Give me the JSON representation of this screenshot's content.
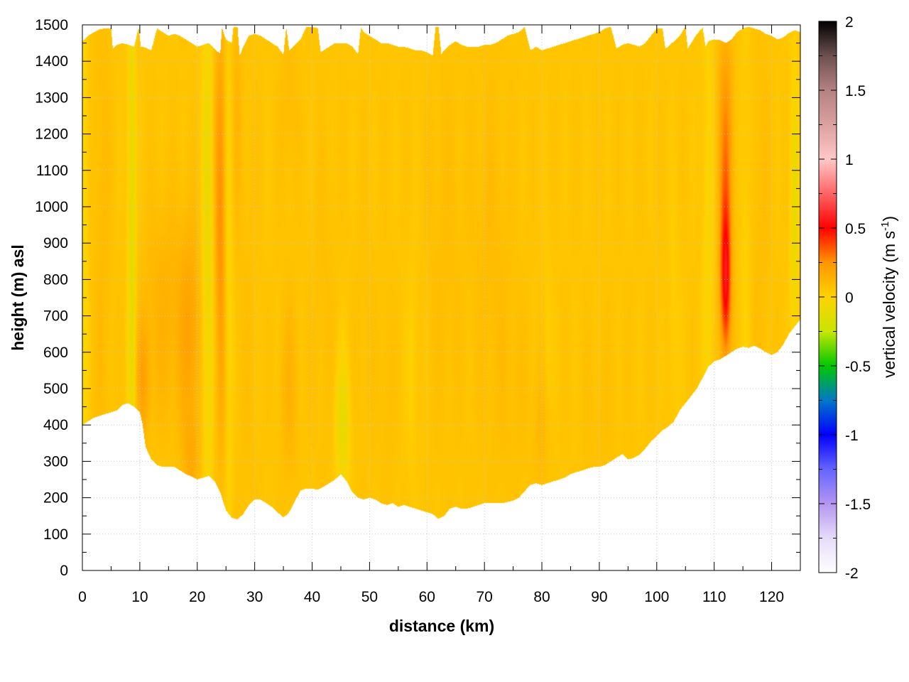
{
  "chart_data": {
    "type": "heatmap",
    "xlabel": "distance (km)",
    "ylabel": "height (m) asl",
    "xlim": [
      0,
      125
    ],
    "ylim": [
      0,
      1500
    ],
    "x_ticks": [
      "0",
      "10",
      "20",
      "30",
      "40",
      "50",
      "60",
      "70",
      "80",
      "90",
      "100",
      "110",
      "120"
    ],
    "y_ticks": [
      "0",
      "100",
      "200",
      "300",
      "400",
      "500",
      "600",
      "700",
      "800",
      "900",
      "1000",
      "1100",
      "1200",
      "1300",
      "1400",
      "1500"
    ],
    "grid": true,
    "colorbar": {
      "label_main": "vertical velocity (m s",
      "label_sup": "-1",
      "label_end": ")",
      "range": [
        -2,
        2
      ],
      "ticks": [
        "2",
        "1.5",
        "1",
        "0.5",
        "0",
        "-0.5",
        "-1",
        "-1.5",
        "-2"
      ],
      "colors": [
        [
          -2.0,
          "#ffffff"
        ],
        [
          -1.75,
          "#e6dcfa"
        ],
        [
          -1.5,
          "#b496f0"
        ],
        [
          -1.25,
          "#6464ff"
        ],
        [
          -1.0,
          "#0000ff"
        ],
        [
          -0.75,
          "#0078c8"
        ],
        [
          -0.5,
          "#00c800"
        ],
        [
          -0.25,
          "#c8e600"
        ],
        [
          0.0,
          "#ffd200"
        ],
        [
          0.25,
          "#ff9600"
        ],
        [
          0.5,
          "#ff0000"
        ],
        [
          0.75,
          "#ff6464"
        ],
        [
          1.0,
          "#ffc8c8"
        ],
        [
          1.25,
          "#dca0a0"
        ],
        [
          1.5,
          "#b48282"
        ],
        [
          1.75,
          "#6e5050"
        ],
        [
          2.0,
          "#000000"
        ]
      ]
    },
    "lower_boundary": [
      [
        0,
        400
      ],
      [
        2,
        420
      ],
      [
        4,
        430
      ],
      [
        6,
        440
      ],
      [
        7,
        455
      ],
      [
        8,
        460
      ],
      [
        9,
        450
      ],
      [
        10,
        435
      ],
      [
        10.5,
        400
      ],
      [
        11,
        340
      ],
      [
        12,
        305
      ],
      [
        13,
        290
      ],
      [
        14,
        285
      ],
      [
        15,
        285
      ],
      [
        16,
        285
      ],
      [
        17,
        275
      ],
      [
        18,
        265
      ],
      [
        19,
        258
      ],
      [
        20,
        250
      ],
      [
        21,
        255
      ],
      [
        22,
        260
      ],
      [
        23,
        245
      ],
      [
        24,
        215
      ],
      [
        25,
        165
      ],
      [
        26,
        145
      ],
      [
        27,
        140
      ],
      [
        28,
        155
      ],
      [
        29,
        180
      ],
      [
        30,
        195
      ],
      [
        31,
        195
      ],
      [
        32,
        185
      ],
      [
        33,
        175
      ],
      [
        34,
        160
      ],
      [
        35,
        145
      ],
      [
        36,
        160
      ],
      [
        37,
        190
      ],
      [
        38,
        220
      ],
      [
        39,
        225
      ],
      [
        40,
        225
      ],
      [
        41,
        222
      ],
      [
        42,
        230
      ],
      [
        43,
        240
      ],
      [
        44,
        250
      ],
      [
        45,
        265
      ],
      [
        46,
        245
      ],
      [
        47,
        215
      ],
      [
        48,
        200
      ],
      [
        49,
        195
      ],
      [
        50,
        200
      ],
      [
        51,
        195
      ],
      [
        52,
        185
      ],
      [
        53,
        180
      ],
      [
        54,
        185
      ],
      [
        55,
        175
      ],
      [
        56,
        180
      ],
      [
        57,
        175
      ],
      [
        58,
        170
      ],
      [
        59,
        165
      ],
      [
        60,
        160
      ],
      [
        61,
        155
      ],
      [
        62,
        142
      ],
      [
        63,
        150
      ],
      [
        64,
        170
      ],
      [
        65,
        175
      ],
      [
        66,
        170
      ],
      [
        67,
        170
      ],
      [
        68,
        175
      ],
      [
        69,
        180
      ],
      [
        70,
        185
      ],
      [
        71,
        185
      ],
      [
        72,
        185
      ],
      [
        73,
        185
      ],
      [
        74,
        188
      ],
      [
        75,
        192
      ],
      [
        76,
        200
      ],
      [
        77,
        218
      ],
      [
        78,
        235
      ],
      [
        79,
        240
      ],
      [
        80,
        235
      ],
      [
        81,
        240
      ],
      [
        82,
        245
      ],
      [
        83,
        250
      ],
      [
        84,
        255
      ],
      [
        85,
        265
      ],
      [
        86,
        270
      ],
      [
        87,
        275
      ],
      [
        88,
        280
      ],
      [
        89,
        285
      ],
      [
        90,
        285
      ],
      [
        91,
        290
      ],
      [
        92,
        300
      ],
      [
        93,
        310
      ],
      [
        94,
        320
      ],
      [
        95,
        305
      ],
      [
        96,
        310
      ],
      [
        97,
        318
      ],
      [
        98,
        335
      ],
      [
        99,
        355
      ],
      [
        100,
        370
      ],
      [
        101,
        385
      ],
      [
        102,
        395
      ],
      [
        103,
        410
      ],
      [
        104,
        440
      ],
      [
        105,
        460
      ],
      [
        106,
        480
      ],
      [
        107,
        500
      ],
      [
        108,
        530
      ],
      [
        109,
        560
      ],
      [
        110,
        575
      ],
      [
        111,
        580
      ],
      [
        112,
        590
      ],
      [
        113,
        600
      ],
      [
        114,
        610
      ],
      [
        115,
        615
      ],
      [
        116,
        612
      ],
      [
        117,
        618
      ],
      [
        118,
        610
      ],
      [
        119,
        600
      ],
      [
        120,
        592
      ],
      [
        121,
        600
      ],
      [
        122,
        620
      ],
      [
        123,
        650
      ],
      [
        124,
        670
      ],
      [
        125,
        690
      ]
    ],
    "upper_boundary": [
      [
        0,
        1455
      ],
      [
        1,
        1470
      ],
      [
        2,
        1480
      ],
      [
        3,
        1488
      ],
      [
        4,
        1490
      ],
      [
        5,
        1490
      ],
      [
        5.3,
        1435
      ],
      [
        6,
        1445
      ],
      [
        7,
        1450
      ],
      [
        8,
        1445
      ],
      [
        9,
        1440
      ],
      [
        9.8,
        1492
      ],
      [
        10.2,
        1440
      ],
      [
        11,
        1438
      ],
      [
        12,
        1430
      ],
      [
        13,
        1490
      ],
      [
        14,
        1480
      ],
      [
        15,
        1470
      ],
      [
        16,
        1475
      ],
      [
        17,
        1470
      ],
      [
        18,
        1460
      ],
      [
        19,
        1450
      ],
      [
        20,
        1440
      ],
      [
        21,
        1445
      ],
      [
        22,
        1450
      ],
      [
        23,
        1435
      ],
      [
        24,
        1420
      ],
      [
        24.3,
        1492
      ],
      [
        25,
        1460
      ],
      [
        26,
        1450
      ],
      [
        26.3,
        1495
      ],
      [
        27,
        1495
      ],
      [
        27.4,
        1415
      ],
      [
        28,
        1440
      ],
      [
        29,
        1470
      ],
      [
        30,
        1475
      ],
      [
        31,
        1470
      ],
      [
        32,
        1460
      ],
      [
        33,
        1450
      ],
      [
        34,
        1440
      ],
      [
        35,
        1418
      ],
      [
        35.5,
        1495
      ],
      [
        36,
        1430
      ],
      [
        37,
        1445
      ],
      [
        38,
        1460
      ],
      [
        39,
        1495
      ],
      [
        40,
        1495
      ],
      [
        41,
        1490
      ],
      [
        41.5,
        1425
      ],
      [
        42,
        1430
      ],
      [
        43,
        1440
      ],
      [
        44,
        1450
      ],
      [
        45,
        1450
      ],
      [
        46,
        1450
      ],
      [
        47,
        1440
      ],
      [
        48,
        1420
      ],
      [
        48.5,
        1492
      ],
      [
        49,
        1480
      ],
      [
        50,
        1470
      ],
      [
        51,
        1460
      ],
      [
        52,
        1450
      ],
      [
        53,
        1450
      ],
      [
        54,
        1445
      ],
      [
        55,
        1440
      ],
      [
        56,
        1440
      ],
      [
        57,
        1435
      ],
      [
        58,
        1430
      ],
      [
        59,
        1430
      ],
      [
        60,
        1425
      ],
      [
        61,
        1415
      ],
      [
        61.5,
        1495
      ],
      [
        62,
        1495
      ],
      [
        62.5,
        1420
      ],
      [
        63,
        1430
      ],
      [
        64,
        1445
      ],
      [
        65,
        1455
      ],
      [
        66,
        1445
      ],
      [
        67,
        1440
      ],
      [
        68,
        1440
      ],
      [
        69,
        1440
      ],
      [
        70,
        1445
      ],
      [
        71,
        1445
      ],
      [
        72,
        1450
      ],
      [
        73,
        1460
      ],
      [
        74,
        1470
      ],
      [
        75,
        1475
      ],
      [
        76,
        1480
      ],
      [
        77,
        1495
      ],
      [
        78,
        1430
      ],
      [
        79,
        1440
      ],
      [
        80,
        1430
      ],
      [
        81,
        1435
      ],
      [
        82,
        1440
      ],
      [
        83,
        1445
      ],
      [
        84,
        1450
      ],
      [
        85,
        1455
      ],
      [
        86,
        1460
      ],
      [
        87,
        1465
      ],
      [
        88,
        1470
      ],
      [
        89,
        1475
      ],
      [
        90,
        1480
      ],
      [
        91,
        1490
      ],
      [
        92,
        1495
      ],
      [
        93,
        1435
      ],
      [
        94,
        1445
      ],
      [
        95,
        1450
      ],
      [
        96,
        1445
      ],
      [
        97,
        1440
      ],
      [
        98,
        1450
      ],
      [
        99,
        1470
      ],
      [
        100,
        1490
      ],
      [
        101,
        1490
      ],
      [
        101.5,
        1435
      ],
      [
        102,
        1440
      ],
      [
        103,
        1455
      ],
      [
        104,
        1470
      ],
      [
        105,
        1495
      ],
      [
        105.4,
        1435
      ],
      [
        106,
        1450
      ],
      [
        107,
        1475
      ],
      [
        108,
        1492
      ],
      [
        108.5,
        1440
      ],
      [
        109,
        1455
      ],
      [
        110,
        1460
      ],
      [
        111,
        1458
      ],
      [
        112,
        1450
      ],
      [
        113,
        1460
      ],
      [
        114,
        1480
      ],
      [
        115,
        1490
      ],
      [
        116,
        1495
      ],
      [
        117,
        1490
      ],
      [
        118,
        1485
      ],
      [
        119,
        1475
      ],
      [
        120,
        1470
      ],
      [
        121,
        1460
      ],
      [
        122,
        1465
      ],
      [
        123,
        1478
      ],
      [
        124,
        1485
      ],
      [
        125,
        1480
      ]
    ],
    "features": [
      {
        "x": 0,
        "y": 900,
        "wx": 1.0,
        "wy": 800,
        "v": -0.1
      },
      {
        "x": 3.5,
        "y": 900,
        "wx": 1.6,
        "wy": 900,
        "v": 0.04
      },
      {
        "x": 8.6,
        "y": 900,
        "wx": 0.7,
        "wy": 800,
        "v": -0.18
      },
      {
        "x": 10.5,
        "y": 520,
        "wx": 1.2,
        "wy": 160,
        "v": 0.12
      },
      {
        "x": 14.5,
        "y": 700,
        "wx": 4.0,
        "wy": 300,
        "v": 0.08
      },
      {
        "x": 18.8,
        "y": 650,
        "wx": 1.8,
        "wy": 300,
        "v": 0.12
      },
      {
        "x": 19.0,
        "y": 300,
        "wx": 1.5,
        "wy": 120,
        "v": 0.08
      },
      {
        "x": 21.8,
        "y": 900,
        "wx": 1.0,
        "wy": 800,
        "v": -0.14
      },
      {
        "x": 24.0,
        "y": 900,
        "wx": 0.9,
        "wy": 300,
        "v": 0.16
      },
      {
        "x": 24.0,
        "y": 1250,
        "wx": 1.0,
        "wy": 300,
        "v": 0.12
      },
      {
        "x": 24.2,
        "y": 500,
        "wx": 1.0,
        "wy": 300,
        "v": 0.08
      },
      {
        "x": 25.5,
        "y": 800,
        "wx": 0.8,
        "wy": 900,
        "v": -0.08
      },
      {
        "x": 26.8,
        "y": 1300,
        "wx": 0.9,
        "wy": 350,
        "v": 0.05
      },
      {
        "x": 28.5,
        "y": 700,
        "wx": 2.0,
        "wy": 800,
        "v": 0.02
      },
      {
        "x": 36.0,
        "y": 500,
        "wx": 1.6,
        "wy": 250,
        "v": 0.07
      },
      {
        "x": 36.0,
        "y": 1300,
        "wx": 1.5,
        "wy": 250,
        "v": 0.04
      },
      {
        "x": 42.0,
        "y": 700,
        "wx": 2.0,
        "wy": 500,
        "v": 0.025
      },
      {
        "x": 45.3,
        "y": 400,
        "wx": 1.3,
        "wy": 200,
        "v": -0.15
      },
      {
        "x": 49.0,
        "y": 600,
        "wx": 1.8,
        "wy": 350,
        "v": 0.02
      },
      {
        "x": 53.0,
        "y": 500,
        "wx": 1.2,
        "wy": 300,
        "v": 0.03
      },
      {
        "x": 57.5,
        "y": 550,
        "wx": 1.0,
        "wy": 300,
        "v": -0.05
      },
      {
        "x": 63.0,
        "y": 900,
        "wx": 3.0,
        "wy": 500,
        "v": 0.03
      },
      {
        "x": 71.0,
        "y": 900,
        "wx": 3.5,
        "wy": 500,
        "v": 0.035
      },
      {
        "x": 75.0,
        "y": 500,
        "wx": 3.0,
        "wy": 300,
        "v": 0.025
      },
      {
        "x": 80.0,
        "y": 400,
        "wx": 1.5,
        "wy": 200,
        "v": 0.05
      },
      {
        "x": 81.0,
        "y": 600,
        "wx": 0.8,
        "wy": 250,
        "v": -0.05
      },
      {
        "x": 90.0,
        "y": 400,
        "wx": 3.0,
        "wy": 250,
        "v": 0.02
      },
      {
        "x": 103.0,
        "y": 700,
        "wx": 1.0,
        "wy": 400,
        "v": -0.04
      },
      {
        "x": 112.0,
        "y": 790,
        "wx": 0.9,
        "wy": 200,
        "v": 0.42
      },
      {
        "x": 112.0,
        "y": 1050,
        "wx": 1.2,
        "wy": 300,
        "v": 0.2
      },
      {
        "x": 112.0,
        "y": 1300,
        "wx": 1.3,
        "wy": 250,
        "v": 0.08
      },
      {
        "x": 109.0,
        "y": 900,
        "wx": 1.0,
        "wy": 700,
        "v": -0.08
      },
      {
        "x": 115.5,
        "y": 900,
        "wx": 1.0,
        "wy": 700,
        "v": -0.05
      },
      {
        "x": 118.0,
        "y": 900,
        "wx": 1.6,
        "wy": 700,
        "v": 0.03
      },
      {
        "x": 124.0,
        "y": 1000,
        "wx": 0.8,
        "wy": 400,
        "v": -0.15
      }
    ],
    "base_value": 0.055
  }
}
